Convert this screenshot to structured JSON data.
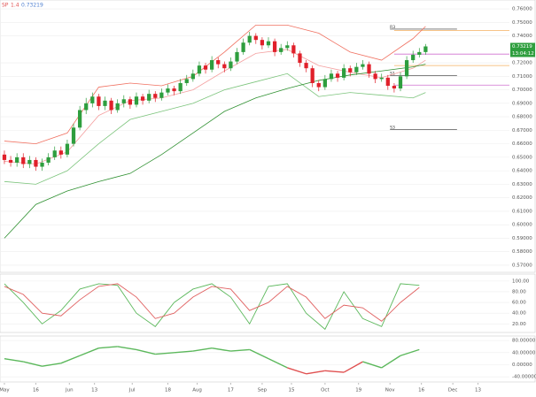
{
  "header": [
    "SP",
    "1.4",
    "0.73219"
  ],
  "chart_data": [
    {
      "type": "candlestick",
      "x": [
        0,
        3,
        6,
        9,
        12,
        15,
        18,
        21,
        24,
        27,
        30,
        33,
        36,
        39,
        42,
        45,
        48,
        51,
        54,
        57,
        60,
        63,
        66,
        69,
        72,
        75,
        78,
        81,
        84,
        87,
        90,
        93,
        96,
        99,
        102,
        105,
        108,
        111,
        114,
        117,
        120,
        123,
        126,
        129,
        132,
        135,
        138,
        141,
        144,
        147,
        150,
        153,
        156,
        159,
        162,
        165,
        168,
        171,
        174,
        177,
        180,
        183,
        186,
        189,
        192,
        195,
        198,
        201
      ],
      "open": [
        0.652,
        0.648,
        0.646,
        0.65,
        0.645,
        0.648,
        0.643,
        0.646,
        0.65,
        0.655,
        0.652,
        0.66,
        0.672,
        0.685,
        0.69,
        0.695,
        0.688,
        0.692,
        0.685,
        0.69,
        0.693,
        0.689,
        0.695,
        0.692,
        0.697,
        0.694,
        0.698,
        0.701,
        0.699,
        0.705,
        0.708,
        0.712,
        0.718,
        0.715,
        0.722,
        0.719,
        0.716,
        0.721,
        0.728,
        0.735,
        0.74,
        0.737,
        0.733,
        0.736,
        0.728,
        0.731,
        0.733,
        0.727,
        0.72,
        0.716,
        0.705,
        0.702,
        0.708,
        0.712,
        0.709,
        0.716,
        0.713,
        0.717,
        0.719,
        0.712,
        0.708,
        0.709,
        0.703,
        0.701,
        0.71,
        0.722,
        0.726,
        0.728
      ],
      "high": [
        0.655,
        0.651,
        0.653,
        0.653,
        0.651,
        0.65,
        0.649,
        0.653,
        0.658,
        0.658,
        0.663,
        0.675,
        0.688,
        0.694,
        0.698,
        0.697,
        0.695,
        0.694,
        0.693,
        0.696,
        0.695,
        0.698,
        0.697,
        0.7,
        0.699,
        0.701,
        0.704,
        0.703,
        0.708,
        0.711,
        0.715,
        0.721,
        0.72,
        0.725,
        0.724,
        0.721,
        0.724,
        0.731,
        0.738,
        0.743,
        0.742,
        0.739,
        0.739,
        0.738,
        0.734,
        0.736,
        0.735,
        0.729,
        0.722,
        0.718,
        0.707,
        0.711,
        0.715,
        0.714,
        0.719,
        0.718,
        0.72,
        0.722,
        0.721,
        0.714,
        0.712,
        0.711,
        0.705,
        0.713,
        0.725,
        0.729,
        0.731,
        0.734
      ],
      "low": [
        0.645,
        0.643,
        0.643,
        0.642,
        0.642,
        0.64,
        0.64,
        0.644,
        0.648,
        0.649,
        0.65,
        0.658,
        0.67,
        0.682,
        0.687,
        0.685,
        0.685,
        0.682,
        0.683,
        0.687,
        0.686,
        0.687,
        0.689,
        0.69,
        0.691,
        0.692,
        0.696,
        0.696,
        0.697,
        0.703,
        0.706,
        0.71,
        0.712,
        0.713,
        0.716,
        0.713,
        0.714,
        0.719,
        0.726,
        0.733,
        0.734,
        0.73,
        0.731,
        0.725,
        0.726,
        0.729,
        0.724,
        0.717,
        0.713,
        0.702,
        0.699,
        0.7,
        0.706,
        0.706,
        0.707,
        0.71,
        0.711,
        0.715,
        0.709,
        0.705,
        0.706,
        0.7,
        0.698,
        0.699,
        0.708,
        0.72,
        0.724,
        0.726
      ],
      "close": [
        0.648,
        0.646,
        0.65,
        0.645,
        0.648,
        0.643,
        0.646,
        0.65,
        0.655,
        0.652,
        0.66,
        0.672,
        0.685,
        0.69,
        0.695,
        0.688,
        0.692,
        0.685,
        0.69,
        0.693,
        0.689,
        0.695,
        0.692,
        0.697,
        0.694,
        0.698,
        0.701,
        0.699,
        0.705,
        0.708,
        0.712,
        0.718,
        0.715,
        0.722,
        0.719,
        0.716,
        0.721,
        0.728,
        0.735,
        0.74,
        0.737,
        0.733,
        0.736,
        0.728,
        0.731,
        0.733,
        0.727,
        0.72,
        0.716,
        0.705,
        0.702,
        0.708,
        0.712,
        0.709,
        0.716,
        0.713,
        0.717,
        0.719,
        0.712,
        0.708,
        0.709,
        0.703,
        0.701,
        0.71,
        0.722,
        0.726,
        0.728,
        0.73219
      ],
      "up_color": "#2e9e3e",
      "down_color": "#e0202a",
      "lines": {
        "x": [
          0,
          15,
          30,
          45,
          60,
          75,
          90,
          105,
          120,
          135,
          150,
          165,
          180,
          195,
          201
        ],
        "series": [
          {
            "color": "#f07060",
            "values": [
              0.662,
              0.66,
              0.668,
              0.702,
              0.705,
              0.703,
              0.71,
              0.728,
              0.748,
              0.748,
              0.742,
              0.728,
              0.722,
              0.738,
              0.747
            ]
          },
          {
            "color": "#f4a0a0",
            "values": [
              0.647,
              0.645,
              0.654,
              0.681,
              0.692,
              0.694,
              0.7,
              0.714,
              0.727,
              0.73,
              0.718,
              0.713,
              0.709,
              0.716,
              0.722
            ]
          },
          {
            "color": "#7cc47c",
            "values": [
              0.632,
              0.63,
              0.64,
              0.66,
              0.678,
              0.684,
              0.69,
              0.7,
              0.706,
              0.712,
              0.695,
              0.698,
              0.696,
              0.694,
              0.698
            ]
          },
          {
            "color": "#2e9030",
            "values": [
              0.59,
              0.615,
              0.625,
              0.632,
              0.638,
              0.652,
              0.668,
              0.684,
              0.694,
              0.701,
              0.707,
              0.711,
              0.714,
              0.717,
              0.719
            ]
          }
        ]
      },
      "pivots": [
        {
          "label": "R3",
          "value": 0.745,
          "color": "#333333"
        },
        {
          "label": "S1",
          "value": 0.7105,
          "color": "#333333"
        },
        {
          "label": "S3",
          "value": 0.6705,
          "color": "#333333"
        }
      ],
      "levels": [
        {
          "value": 0.744,
          "color": "#f5b060"
        },
        {
          "value": 0.7265,
          "color": "#d070d0"
        },
        {
          "value": 0.718,
          "color": "#f5b060"
        },
        {
          "value": 0.7035,
          "color": "#d070d0"
        }
      ],
      "last_label": "0.73219",
      "time_label": "13:04:12",
      "xlim": [
        -2.1,
        241
      ],
      "ylim": [
        0.5647,
        0.7666
      ],
      "xticks": [
        {
          "value": 0,
          "label": "May"
        },
        {
          "value": 15,
          "label": "16"
        },
        {
          "value": 31,
          "label": "Jun"
        },
        {
          "value": 43,
          "label": "13"
        },
        {
          "value": 61,
          "label": "Jul"
        },
        {
          "value": 78,
          "label": "18"
        },
        {
          "value": 92,
          "label": "Aug"
        },
        {
          "value": 108,
          "label": "17"
        },
        {
          "value": 123,
          "label": "Sep"
        },
        {
          "value": 137,
          "label": "15"
        },
        {
          "value": 153,
          "label": "Oct"
        },
        {
          "value": 169,
          "label": "19"
        },
        {
          "value": 184,
          "label": "Nov"
        },
        {
          "value": 199,
          "label": "16"
        },
        {
          "value": 214,
          "label": "Dec"
        },
        {
          "value": 226,
          "label": "13"
        }
      ],
      "yticks": [
        {
          "value": 0.57,
          "label": "0.57000"
        },
        {
          "value": 0.58,
          "label": "0.58000"
        },
        {
          "value": 0.59,
          "label": "0.59000"
        },
        {
          "value": 0.6,
          "label": "0.60000"
        },
        {
          "value": 0.61,
          "label": "0.61000"
        },
        {
          "value": 0.62,
          "label": "0.62000"
        },
        {
          "value": 0.63,
          "label": "0.63000"
        },
        {
          "value": 0.64,
          "label": "0.64000"
        },
        {
          "value": 0.65,
          "label": "0.65000"
        },
        {
          "value": 0.66,
          "label": "0.66000"
        },
        {
          "value": 0.67,
          "label": "0.67000"
        },
        {
          "value": 0.68,
          "label": "0.68000"
        },
        {
          "value": 0.69,
          "label": "0.69000"
        },
        {
          "value": 0.7,
          "label": "0.70000"
        },
        {
          "value": 0.71,
          "label": "0.71000"
        },
        {
          "value": 0.72,
          "label": "0.72000"
        },
        {
          "value": 0.74,
          "label": "0.74000"
        },
        {
          "value": 0.75,
          "label": "0.75000"
        },
        {
          "value": 0.76,
          "label": "0.76000"
        }
      ]
    },
    {
      "type": "line",
      "x": [
        0,
        9,
        18,
        27,
        36,
        45,
        54,
        63,
        72,
        81,
        90,
        99,
        108,
        117,
        126,
        135,
        144,
        153,
        162,
        171,
        180,
        189,
        198
      ],
      "series": [
        {
          "color": "#5cb85c",
          "values": [
            95,
            60,
            20,
            45,
            85,
            95,
            92,
            40,
            15,
            60,
            85,
            95,
            70,
            20,
            90,
            95,
            40,
            10,
            80,
            30,
            15,
            95,
            92
          ]
        },
        {
          "color": "#e06060",
          "values": [
            90,
            75,
            40,
            35,
            65,
            90,
            95,
            70,
            30,
            40,
            70,
            90,
            85,
            45,
            60,
            90,
            70,
            30,
            55,
            50,
            25,
            60,
            88
          ]
        }
      ],
      "xlim": [
        -2.1,
        241
      ],
      "ylim": [
        4,
        113
      ],
      "yticks": [
        {
          "value": 20,
          "label": "20.00"
        },
        {
          "value": 40,
          "label": "40.00"
        },
        {
          "value": 60,
          "label": "60.00"
        },
        {
          "value": 80,
          "label": "80.00"
        },
        {
          "value": 100,
          "label": "100.00"
        }
      ]
    },
    {
      "type": "signline",
      "x": [
        0,
        9,
        18,
        27,
        36,
        45,
        54,
        63,
        72,
        81,
        90,
        99,
        108,
        117,
        126,
        135,
        144,
        153,
        162,
        171,
        180,
        189,
        198
      ],
      "values": [
        20,
        10,
        -5,
        5,
        30,
        55,
        60,
        50,
        35,
        40,
        45,
        55,
        45,
        50,
        20,
        -10,
        -30,
        -20,
        -25,
        10,
        -10,
        30,
        50
      ],
      "pos_color": "#5cb85c",
      "neg_color": "#e05050",
      "xlim": [
        -2.1,
        241
      ],
      "ylim": [
        -57,
        95
      ],
      "yticks": [
        {
          "value": -40,
          "label": "-40.00000"
        },
        {
          "value": 0,
          "label": "0.00000"
        },
        {
          "value": 40,
          "label": "40.00000"
        },
        {
          "value": 80,
          "label": "80.00000"
        }
      ]
    }
  ]
}
